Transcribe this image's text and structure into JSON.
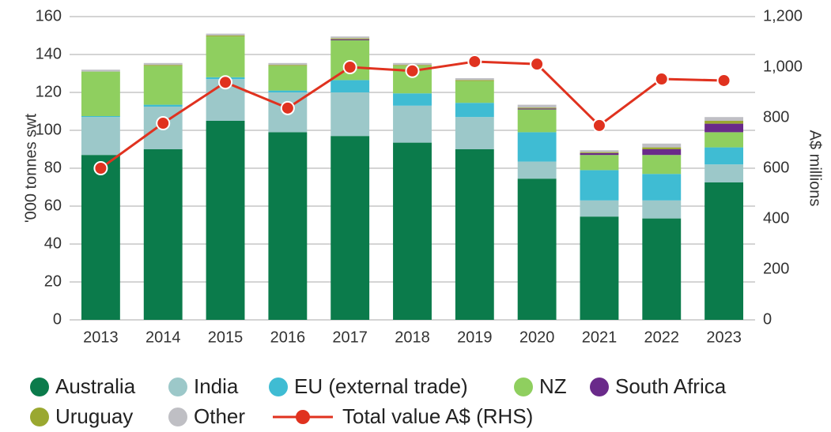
{
  "chart_data": {
    "type": "bar",
    "stacked": true,
    "categories": [
      "2013",
      "2014",
      "2015",
      "2016",
      "2017",
      "2018",
      "2019",
      "2020",
      "2021",
      "2022",
      "2023"
    ],
    "y_label": "'000 tonnes swt",
    "y2_label": "A$ millions",
    "ylim": [
      0,
      160
    ],
    "yticks": [
      0,
      20,
      40,
      60,
      80,
      100,
      120,
      140,
      160
    ],
    "y2lim": [
      0,
      1200
    ],
    "y2ticks": [
      0,
      200,
      400,
      600,
      800,
      {
        "value": 1000,
        "label": "1,000"
      },
      {
        "value": 1200,
        "label": "1,200"
      }
    ],
    "grid": true,
    "series": [
      {
        "name": "Australia",
        "color": "#0b7b4b",
        "values": [
          87,
          90,
          105,
          99,
          97,
          93.5,
          90,
          74.5,
          54.5,
          53.5,
          72.5
        ]
      },
      {
        "name": "India",
        "color": "#9cc8c9",
        "values": [
          20,
          22.5,
          22,
          21,
          23,
          19.5,
          17,
          9,
          8.5,
          9.5,
          9.5
        ]
      },
      {
        "name": "EU (external trade)",
        "color": "#3fbcd3",
        "values": [
          0.5,
          1,
          1,
          1,
          6.5,
          6.5,
          7.5,
          15.5,
          16,
          14,
          9
        ]
      },
      {
        "name": "NZ",
        "color": "#8fcf5f",
        "values": [
          23.5,
          20.5,
          21.5,
          13,
          21,
          14.5,
          11.5,
          12,
          8,
          10,
          8
        ]
      },
      {
        "name": "South Africa",
        "color": "#6a2a8a",
        "values": [
          0,
          0,
          0,
          0,
          0.5,
          0,
          0,
          0.5,
          1,
          3,
          4.5
        ]
      },
      {
        "name": "Uruguay",
        "color": "#9aa830",
        "values": [
          0,
          0.5,
          0.5,
          0.5,
          0.5,
          0.5,
          0.5,
          0.5,
          0.5,
          1,
          1.5
        ]
      },
      {
        "name": "Other",
        "color": "#bfbfc4",
        "values": [
          1,
          1,
          1,
          1,
          1,
          1,
          1,
          1.5,
          1,
          2,
          2
        ]
      },
      {
        "name": "Total value A$ (RHS)",
        "color": "#e0321f",
        "axis": "y2",
        "values": [
          600,
          778,
          940,
          838,
          1000,
          985,
          1022,
          1012,
          769,
          953,
          947
        ]
      }
    ]
  }
}
